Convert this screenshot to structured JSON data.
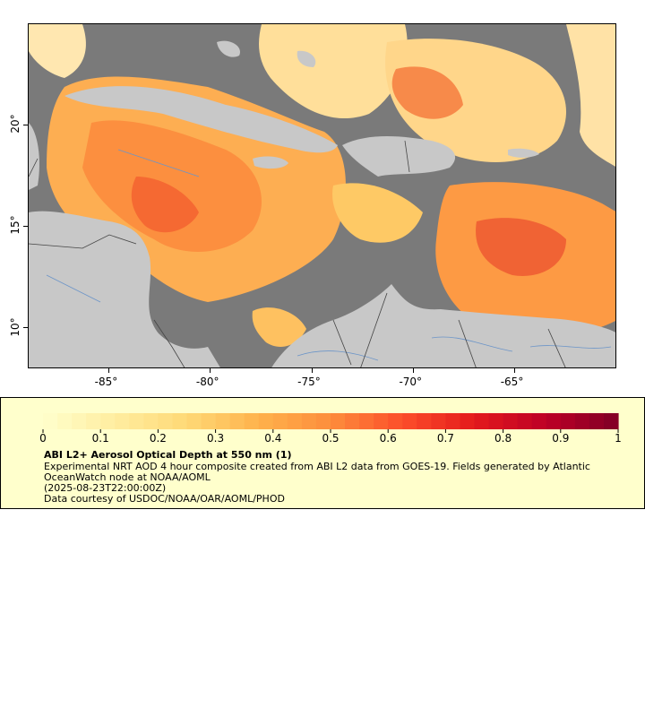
{
  "map": {
    "lon_ticks": [
      {
        "label": "-85°",
        "value": -85
      },
      {
        "label": "-80°",
        "value": -80
      },
      {
        "label": "-75°",
        "value": -75
      },
      {
        "label": "-70°",
        "value": -70
      },
      {
        "label": "-65°",
        "value": -65
      }
    ],
    "lat_ticks": [
      {
        "label": "20°",
        "value": 20
      },
      {
        "label": "15°",
        "value": 15
      },
      {
        "label": "10°",
        "value": 10
      }
    ],
    "extent": {
      "lon_min": -89,
      "lon_max": -60,
      "lat_min": 8,
      "lat_max": 25
    },
    "colors": {
      "no_data": "#7a7a7a",
      "land": "#c8c8c8",
      "rivers": "#6c95c8",
      "borders": "#444444"
    }
  },
  "legend": {
    "colorbar_ticks": [
      "0",
      "0.1",
      "0.2",
      "0.3",
      "0.4",
      "0.5",
      "0.6",
      "0.7",
      "0.8",
      "0.9",
      "1"
    ],
    "colorbar_range": [
      0,
      1
    ],
    "colormap": [
      "#ffffcc",
      "#ffeda0",
      "#fed976",
      "#feb24c",
      "#fd8d3c",
      "#fc4e2a",
      "#e31a1c",
      "#bd0026",
      "#800026"
    ],
    "title": "ABI L2+ Aerosol Optical Depth at 550 nm (1)",
    "line1": "Experimental NRT AOD 4 hour composite created from ABI L2 data from GOES-19. Fields generated by Atlantic",
    "line2": "OceanWatch node at NOAA/AOML",
    "line3": "(2025-08-23T22:00:00Z)",
    "line4": "Data courtesy of USDOC/NOAA/OAR/AOML/PHOD"
  }
}
